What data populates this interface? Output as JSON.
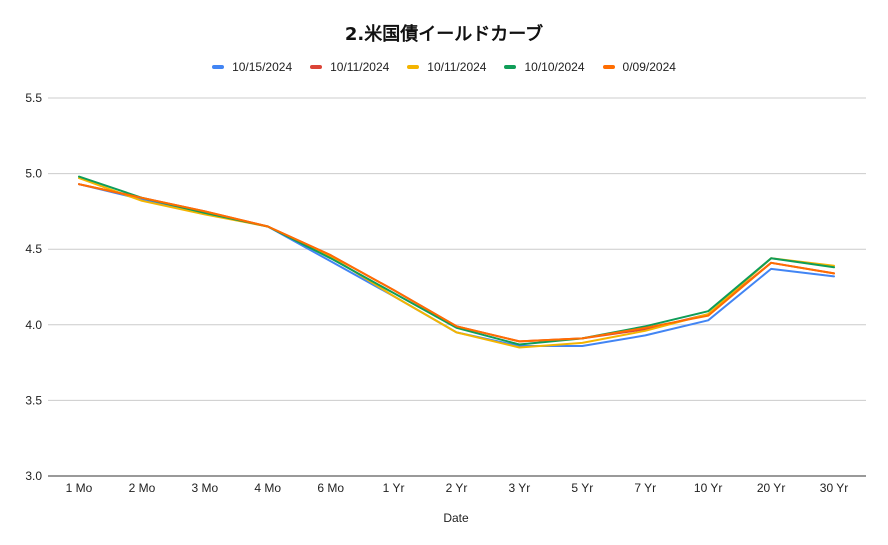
{
  "chart_data": {
    "type": "line",
    "title": "2.米国債イールドカーブ",
    "xlabel": "Date",
    "ylabel": "",
    "ylim": [
      3.0,
      5.5
    ],
    "yticks": [
      "3.0",
      "3.5",
      "4.0",
      "4.5",
      "5.0",
      "5.5"
    ],
    "grid": true,
    "legend_position": "top-center",
    "categories": [
      "1 Mo",
      "2 Mo",
      "3 Mo",
      "4 Mo",
      "6 Mo",
      "1 Yr",
      "2 Yr",
      "3 Yr",
      "5 Yr",
      "7 Yr",
      "10 Yr",
      "20 Yr",
      "30 Yr"
    ],
    "series": [
      {
        "name": "10/15/2024",
        "color": "#4285f4",
        "values": [
          4.93,
          4.83,
          4.74,
          4.65,
          4.42,
          4.19,
          3.95,
          3.86,
          3.86,
          3.93,
          4.03,
          4.37,
          4.32
        ]
      },
      {
        "name": "10/11/2024",
        "color": "#db4437",
        "values": [
          4.93,
          4.84,
          4.75,
          4.65,
          4.46,
          4.23,
          3.99,
          3.89,
          3.91,
          3.97,
          4.07,
          4.41,
          4.34
        ]
      },
      {
        "name": "10/11/2024",
        "color": "#f4b400",
        "values": [
          4.97,
          4.82,
          4.73,
          4.65,
          4.45,
          4.19,
          3.95,
          3.85,
          3.88,
          3.96,
          4.07,
          4.44,
          4.39
        ]
      },
      {
        "name": "10/10/2024",
        "color": "#0f9d58",
        "values": [
          4.98,
          4.84,
          4.74,
          4.65,
          4.44,
          4.21,
          3.98,
          3.87,
          3.91,
          3.99,
          4.09,
          4.44,
          4.38
        ]
      },
      {
        "name": "0/09/2024",
        "color": "#ff6d01",
        "values": [
          4.93,
          4.84,
          4.75,
          4.65,
          4.46,
          4.23,
          3.99,
          3.89,
          3.91,
          3.98,
          4.06,
          4.41,
          4.34
        ]
      }
    ]
  }
}
